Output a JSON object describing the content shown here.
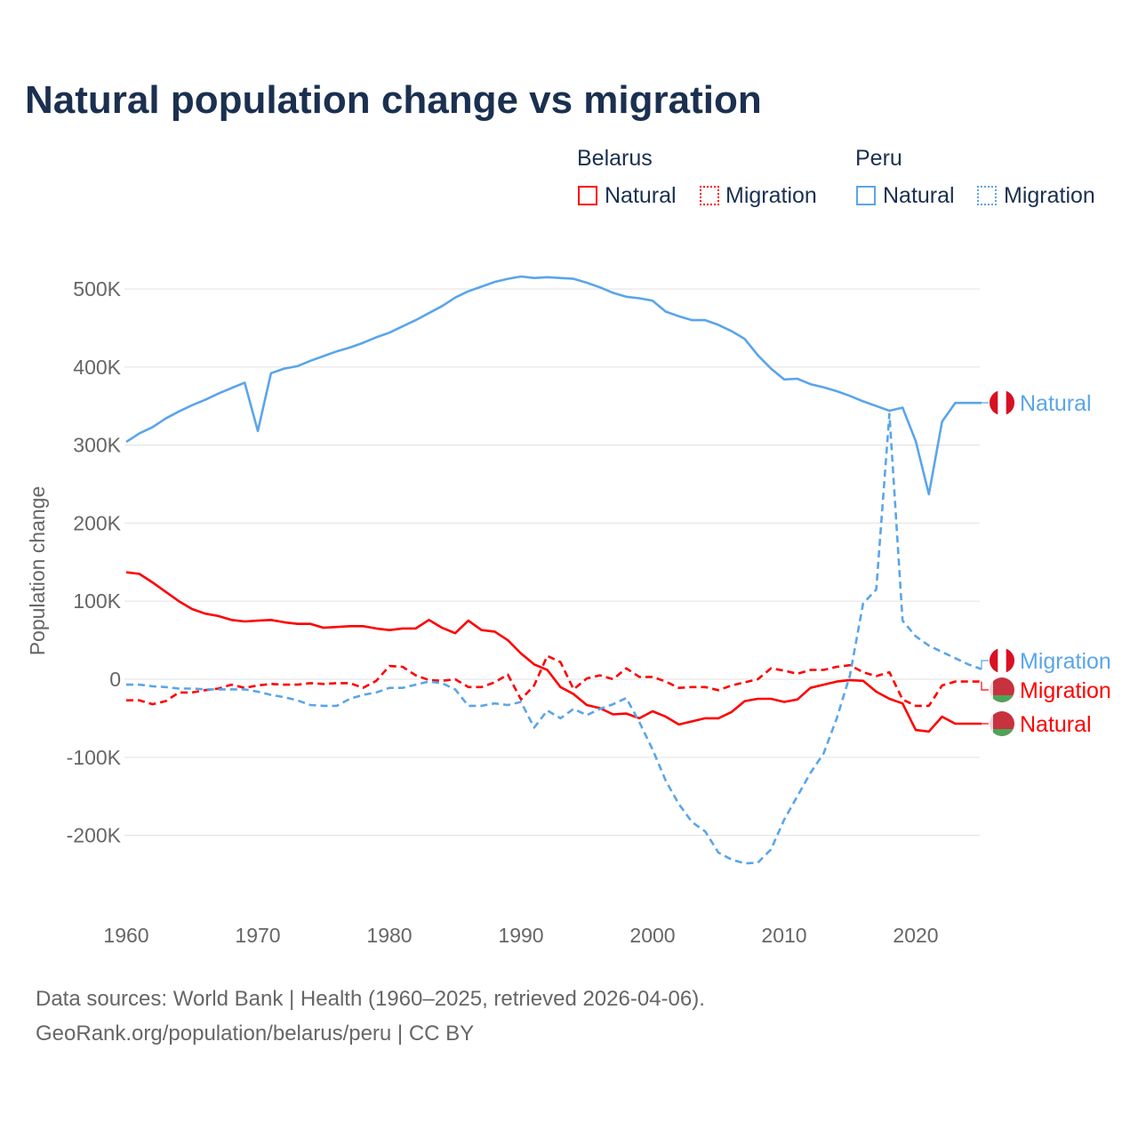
{
  "title": "Natural population change vs migration",
  "legend": {
    "groups": [
      {
        "name": "Belarus",
        "items": [
          "Natural",
          "Migration"
        ],
        "color": "#ff0000"
      },
      {
        "name": "Peru",
        "items": [
          "Natural",
          "Migration"
        ],
        "color": "#5aa5ea"
      }
    ]
  },
  "source_line1": "Data sources: World Bank | Health (1960–2025, retrieved 2026-04-06).",
  "source_line2": "GeoRank.org/population/belarus/peru | CC BY",
  "chart_data": {
    "type": "line",
    "title": "Natural population change vs migration",
    "ylabel": "Population change",
    "xlabel": "",
    "ylim": [
      -280000,
      540000
    ],
    "xlim": [
      1960,
      2025
    ],
    "grid": true,
    "legend_placement": "top-right",
    "yticks": [
      {
        "v": 500000,
        "label": "500K"
      },
      {
        "v": 400000,
        "label": "400K"
      },
      {
        "v": 300000,
        "label": "300K"
      },
      {
        "v": 200000,
        "label": "200K"
      },
      {
        "v": 100000,
        "label": "100K"
      },
      {
        "v": 0,
        "label": "0"
      },
      {
        "v": -100000,
        "label": "-100K"
      },
      {
        "v": -200000,
        "label": "-200K"
      }
    ],
    "xticks": [
      "1960",
      "1970",
      "1980",
      "1990",
      "2000",
      "2010",
      "2020"
    ],
    "x_start": 1960,
    "series": [
      {
        "name": "Belarus Natural",
        "label": "Natural",
        "country": "Belarus",
        "color": "#ff0000",
        "dashed": false,
        "values_k": [
          137,
          135,
          124,
          112,
          100,
          90,
          84,
          81,
          76,
          74,
          75,
          76,
          73,
          71,
          71,
          66,
          67,
          68,
          68,
          65,
          63,
          65,
          65,
          76,
          66,
          59,
          75,
          63,
          61,
          50,
          33,
          19,
          12,
          -10,
          -19,
          -33,
          -37,
          -45,
          -44,
          -50,
          -41,
          -48,
          -58,
          -54,
          -50,
          -50,
          -42,
          -28,
          -25,
          -25,
          -29,
          -26,
          -11,
          -7,
          -3,
          -1,
          -2,
          -16,
          -25,
          -31,
          -65,
          -67,
          -48,
          -57,
          -57,
          -57
        ]
      },
      {
        "name": "Belarus Migration",
        "label": "Migration",
        "country": "Belarus",
        "color": "#ff0000",
        "dashed": true,
        "values_k": [
          -27,
          -27,
          -32,
          -28,
          -17,
          -17,
          -14,
          -12,
          -7,
          -11,
          -8,
          -6,
          -7,
          -7,
          -5,
          -6,
          -5,
          -5,
          -11,
          -2,
          17,
          16,
          5,
          -1,
          -2,
          0,
          -10,
          -10,
          -4,
          6,
          -26,
          -8,
          30,
          22,
          -13,
          1,
          5,
          0,
          14,
          3,
          3,
          -3,
          -11,
          -10,
          -10,
          -14,
          -8,
          -4,
          0,
          14,
          11,
          7,
          12,
          12,
          16,
          18,
          9,
          4,
          9,
          -26,
          -34,
          -34,
          -8,
          -3,
          -3,
          -3
        ]
      },
      {
        "name": "Peru Natural",
        "label": "Natural",
        "country": "Peru",
        "color": "#5aa5ea",
        "dashed": false,
        "values_k": [
          304,
          315,
          323,
          334,
          343,
          351,
          358,
          366,
          373,
          380,
          318,
          392,
          398,
          401,
          408,
          414,
          420,
          425,
          431,
          438,
          444,
          452,
          460,
          469,
          478,
          489,
          497,
          503,
          509,
          513,
          516,
          514,
          515,
          514,
          513,
          508,
          502,
          495,
          490,
          488,
          485,
          471,
          465,
          460,
          460,
          454,
          446,
          436,
          415,
          398,
          384,
          385,
          378,
          374,
          369,
          363,
          356,
          350,
          344,
          348,
          305,
          237,
          330,
          354,
          354,
          354
        ]
      },
      {
        "name": "Peru Migration",
        "label": "Migration",
        "country": "Peru",
        "color": "#5aa5ea",
        "dashed": true,
        "values_k": [
          -7,
          -7,
          -9,
          -10,
          -12,
          -12,
          -13,
          -13,
          -13,
          -13,
          -16,
          -20,
          -23,
          -27,
          -33,
          -34,
          -34,
          -25,
          -20,
          -17,
          -11,
          -11,
          -7,
          -3,
          -5,
          -13,
          -34,
          -34,
          -31,
          -33,
          -29,
          -62,
          -40,
          -50,
          -38,
          -46,
          -38,
          -32,
          -24,
          -55,
          -90,
          -130,
          -160,
          -183,
          -195,
          -222,
          -231,
          -236,
          -235,
          -218,
          -180,
          -150,
          -120,
          -95,
          -50,
          5,
          97,
          115,
          340,
          75,
          55,
          43,
          35,
          27,
          19,
          13
        ]
      }
    ]
  }
}
